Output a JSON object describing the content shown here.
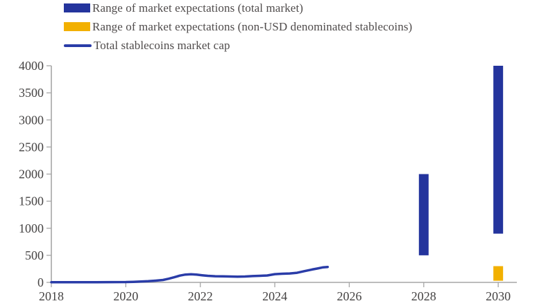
{
  "legend": {
    "items": [
      {
        "name": "legend-range-total-market",
        "label": "Range of market expectations (total market)",
        "swatch": "box",
        "color": "#24349D"
      },
      {
        "name": "legend-range-non-usd",
        "label": "Range of market expectations (non-USD denominated stablecoins)",
        "swatch": "box",
        "color": "#F2B000"
      },
      {
        "name": "legend-total-market-cap",
        "label": "Total stablecoins market cap",
        "swatch": "line",
        "color": "#2A3CA8"
      }
    ]
  },
  "chart_data": {
    "type": "line+bar-ranges",
    "title": "",
    "xlabel": "",
    "ylabel": "",
    "xlim": [
      2018,
      2030.5
    ],
    "ylim": [
      0,
      4000
    ],
    "x_ticks": [
      2018,
      2020,
      2022,
      2024,
      2026,
      2028,
      2030
    ],
    "y_ticks": [
      0,
      500,
      1000,
      1500,
      2000,
      2500,
      3000,
      3500,
      4000
    ],
    "grid": false,
    "legend_position": "top-left",
    "axis_color": "#A6A6A6",
    "tick_label_color": "#454343",
    "series": [
      {
        "name": "Total stablecoins market cap",
        "type": "line",
        "color": "#2A3CA8",
        "points": [
          [
            2018.0,
            3
          ],
          [
            2018.4,
            3
          ],
          [
            2018.8,
            4
          ],
          [
            2019.2,
            4
          ],
          [
            2019.6,
            5
          ],
          [
            2020.0,
            7
          ],
          [
            2020.2,
            10
          ],
          [
            2020.4,
            15
          ],
          [
            2020.6,
            22
          ],
          [
            2020.8,
            32
          ],
          [
            2021.0,
            45
          ],
          [
            2021.15,
            68
          ],
          [
            2021.3,
            95
          ],
          [
            2021.45,
            125
          ],
          [
            2021.6,
            145
          ],
          [
            2021.75,
            150
          ],
          [
            2021.9,
            143
          ],
          [
            2022.05,
            131
          ],
          [
            2022.2,
            122
          ],
          [
            2022.4,
            114
          ],
          [
            2022.6,
            111
          ],
          [
            2022.8,
            108
          ],
          [
            2023.0,
            106
          ],
          [
            2023.2,
            109
          ],
          [
            2023.4,
            116
          ],
          [
            2023.6,
            122
          ],
          [
            2023.8,
            128
          ],
          [
            2024.0,
            152
          ],
          [
            2024.2,
            160
          ],
          [
            2024.4,
            165
          ],
          [
            2024.6,
            178
          ],
          [
            2024.8,
            208
          ],
          [
            2025.0,
            238
          ],
          [
            2025.15,
            257
          ],
          [
            2025.3,
            278
          ],
          [
            2025.42,
            285
          ]
        ]
      },
      {
        "name": "Range of market expectations (total market)",
        "type": "bar-range",
        "color": "#24349D",
        "bars": [
          {
            "x": 2028,
            "low": 500,
            "high": 2000
          },
          {
            "x": 2030,
            "low": 900,
            "high": 4000
          }
        ]
      },
      {
        "name": "Range of market expectations (non-USD denominated stablecoins)",
        "type": "bar-range",
        "color": "#F2B000",
        "bars": [
          {
            "x": 2030,
            "low": 30,
            "high": 300
          }
        ]
      }
    ]
  }
}
